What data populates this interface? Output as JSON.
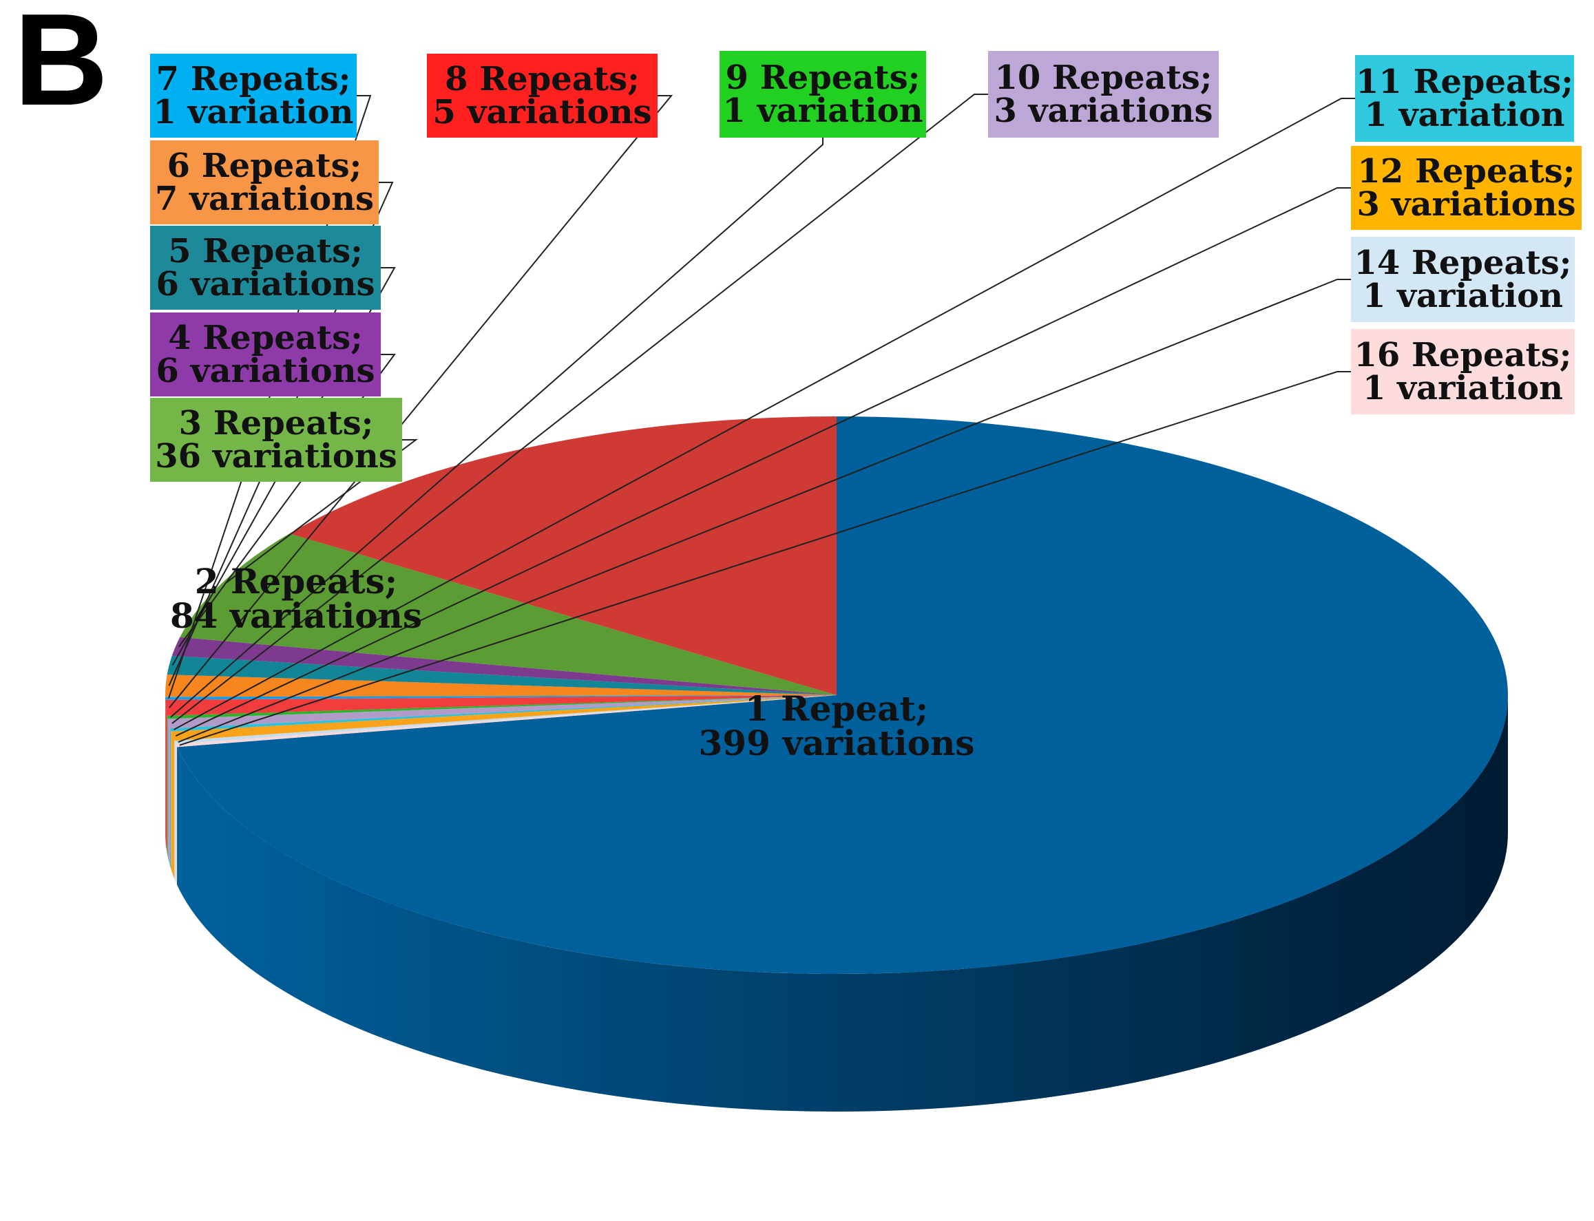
{
  "panel_label": "B",
  "chart_data": {
    "type": "pie",
    "style": "3d",
    "title": "",
    "legend": "none",
    "slices": [
      {
        "category": "1 Repeat;",
        "value": 399,
        "value_label": "399 variations",
        "color": "#00609C"
      },
      {
        "category": "16 Repeats;",
        "value": 1,
        "value_label": "1 variation",
        "color": "#F8D8D8"
      },
      {
        "category": "14 Repeats;",
        "value": 1,
        "value_label": "1 variation",
        "color": "#C4DEEE"
      },
      {
        "category": "12 Repeats;",
        "value": 3,
        "value_label": "3 variations",
        "color": "#F9A31A"
      },
      {
        "category": "11 Repeats;",
        "value": 1,
        "value_label": "1 variation",
        "color": "#2FC0DA"
      },
      {
        "category": "10 Repeats;",
        "value": 3,
        "value_label": "3 variations",
        "color": "#B29BC8"
      },
      {
        "category": "9 Repeats;",
        "value": 1,
        "value_label": "1 variation",
        "color": "#2BB52B"
      },
      {
        "category": "8 Repeats;",
        "value": 5,
        "value_label": "5 variations",
        "color": "#F03C3C"
      },
      {
        "category": "7 Repeats;",
        "value": 1,
        "value_label": "1 variation",
        "color": "#1D9BE0"
      },
      {
        "category": "6 Repeats;",
        "value": 7,
        "value_label": "7 variations",
        "color": "#F7861E"
      },
      {
        "category": "5 Repeats;",
        "value": 6,
        "value_label": "6 variations",
        "color": "#128696"
      },
      {
        "category": "4 Repeats;",
        "value": 6,
        "value_label": "6 variations",
        "color": "#7D3A8F"
      },
      {
        "category": "3 Repeats;",
        "value": 36,
        "value_label": "36 variations",
        "color": "#5C9C35"
      },
      {
        "category": "2 Repeats;",
        "value": 84,
        "value_label": "84 variations",
        "color": "#CF3A35"
      }
    ]
  }
}
